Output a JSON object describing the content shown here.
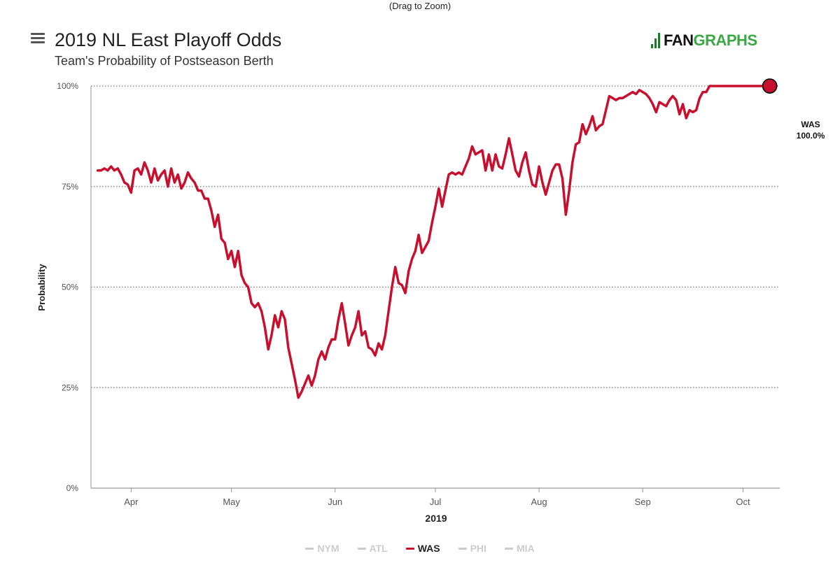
{
  "zoom_hint": "(Drag to Zoom)",
  "logo": {
    "part1": "FAN",
    "part2": "GRAPHS"
  },
  "colors": {
    "series": "#c8102e",
    "grid": "#777777",
    "axis": "#999999"
  },
  "end_label": {
    "team": "WAS",
    "value": "100.0%"
  },
  "legend": [
    {
      "label": "NYM",
      "active": false
    },
    {
      "label": "ATL",
      "active": false
    },
    {
      "label": "WAS",
      "active": true
    },
    {
      "label": "PHI",
      "active": false
    },
    {
      "label": "MIA",
      "active": false
    }
  ],
  "chart_data": {
    "type": "line",
    "title": "2019 NL East Playoff Odds",
    "subtitle": "Team's Probability of Postseason Berth",
    "xlabel": "2019",
    "ylabel": "Probability",
    "x_range": [
      "2019-03-20",
      "2019-10-12"
    ],
    "ylim": [
      0,
      100
    ],
    "y_ticks": [
      {
        "value": 0,
        "label": "0%"
      },
      {
        "value": 25,
        "label": "25%"
      },
      {
        "value": 50,
        "label": "50%"
      },
      {
        "value": 75,
        "label": "75%"
      },
      {
        "value": 100,
        "label": "100%"
      }
    ],
    "x_ticks": [
      {
        "date": "2019-04-01",
        "label": "Apr"
      },
      {
        "date": "2019-05-01",
        "label": "May"
      },
      {
        "date": "2019-06-01",
        "label": "Jun"
      },
      {
        "date": "2019-07-01",
        "label": "Jul"
      },
      {
        "date": "2019-08-01",
        "label": "Aug"
      },
      {
        "date": "2019-09-01",
        "label": "Sep"
      },
      {
        "date": "2019-10-01",
        "label": "Oct"
      }
    ],
    "grid": "horizontal dotted",
    "legend_position": "bottom",
    "series": [
      {
        "name": "WAS",
        "points": [
          [
            "2019-03-22",
            79
          ],
          [
            "2019-03-23",
            79
          ],
          [
            "2019-03-24",
            79.5
          ],
          [
            "2019-03-25",
            79
          ],
          [
            "2019-03-26",
            80
          ],
          [
            "2019-03-27",
            79
          ],
          [
            "2019-03-28",
            79.5
          ],
          [
            "2019-03-29",
            78
          ],
          [
            "2019-03-30",
            76
          ],
          [
            "2019-03-31",
            75.5
          ],
          [
            "2019-04-01",
            73.5
          ],
          [
            "2019-04-02",
            79
          ],
          [
            "2019-04-03",
            79.5
          ],
          [
            "2019-04-04",
            78
          ],
          [
            "2019-04-05",
            81
          ],
          [
            "2019-04-06",
            79
          ],
          [
            "2019-04-07",
            76
          ],
          [
            "2019-04-08",
            79.5
          ],
          [
            "2019-04-09",
            76.5
          ],
          [
            "2019-04-10",
            78
          ],
          [
            "2019-04-11",
            79
          ],
          [
            "2019-04-12",
            75
          ],
          [
            "2019-04-13",
            79.5
          ],
          [
            "2019-04-14",
            76
          ],
          [
            "2019-04-15",
            78
          ],
          [
            "2019-04-16",
            74.5
          ],
          [
            "2019-04-17",
            76
          ],
          [
            "2019-04-18",
            78.5
          ],
          [
            "2019-04-19",
            77
          ],
          [
            "2019-04-20",
            76
          ],
          [
            "2019-04-21",
            74
          ],
          [
            "2019-04-22",
            74
          ],
          [
            "2019-04-23",
            72
          ],
          [
            "2019-04-24",
            72
          ],
          [
            "2019-04-25",
            69
          ],
          [
            "2019-04-26",
            65
          ],
          [
            "2019-04-27",
            68
          ],
          [
            "2019-04-28",
            62
          ],
          [
            "2019-04-29",
            61
          ],
          [
            "2019-04-30",
            57
          ],
          [
            "2019-05-01",
            59
          ],
          [
            "2019-05-02",
            55
          ],
          [
            "2019-05-03",
            59
          ],
          [
            "2019-05-04",
            53
          ],
          [
            "2019-05-05",
            51
          ],
          [
            "2019-05-06",
            50
          ],
          [
            "2019-05-07",
            46
          ],
          [
            "2019-05-08",
            45
          ],
          [
            "2019-05-09",
            46
          ],
          [
            "2019-05-10",
            44
          ],
          [
            "2019-05-11",
            40
          ],
          [
            "2019-05-12",
            34.5
          ],
          [
            "2019-05-13",
            38
          ],
          [
            "2019-05-14",
            43
          ],
          [
            "2019-05-15",
            40
          ],
          [
            "2019-05-16",
            44
          ],
          [
            "2019-05-17",
            42
          ],
          [
            "2019-05-18",
            35
          ],
          [
            "2019-05-19",
            31
          ],
          [
            "2019-05-20",
            27
          ],
          [
            "2019-05-21",
            22.5
          ],
          [
            "2019-05-22",
            24
          ],
          [
            "2019-05-23",
            26
          ],
          [
            "2019-05-24",
            28
          ],
          [
            "2019-05-25",
            25.5
          ],
          [
            "2019-05-26",
            28
          ],
          [
            "2019-05-27",
            32
          ],
          [
            "2019-05-28",
            34
          ],
          [
            "2019-05-29",
            32
          ],
          [
            "2019-05-30",
            35
          ],
          [
            "2019-05-31",
            37
          ],
          [
            "2019-06-01",
            37
          ],
          [
            "2019-06-02",
            42
          ],
          [
            "2019-06-03",
            46
          ],
          [
            "2019-06-04",
            41
          ],
          [
            "2019-06-05",
            35.5
          ],
          [
            "2019-06-06",
            38
          ],
          [
            "2019-06-07",
            40
          ],
          [
            "2019-06-08",
            44
          ],
          [
            "2019-06-09",
            38
          ],
          [
            "2019-06-10",
            39
          ],
          [
            "2019-06-11",
            35
          ],
          [
            "2019-06-12",
            34.5
          ],
          [
            "2019-06-13",
            33
          ],
          [
            "2019-06-14",
            36
          ],
          [
            "2019-06-15",
            34.5
          ],
          [
            "2019-06-16",
            38
          ],
          [
            "2019-06-17",
            44
          ],
          [
            "2019-06-18",
            50
          ],
          [
            "2019-06-19",
            55
          ],
          [
            "2019-06-20",
            51
          ],
          [
            "2019-06-21",
            50.5
          ],
          [
            "2019-06-22",
            48.5
          ],
          [
            "2019-06-23",
            54
          ],
          [
            "2019-06-24",
            57
          ],
          [
            "2019-06-25",
            59
          ],
          [
            "2019-06-26",
            63
          ],
          [
            "2019-06-27",
            58.5
          ],
          [
            "2019-06-28",
            60
          ],
          [
            "2019-06-29",
            61.5
          ],
          [
            "2019-06-30",
            66
          ],
          [
            "2019-07-01",
            70
          ],
          [
            "2019-07-02",
            74.5
          ],
          [
            "2019-07-03",
            70
          ],
          [
            "2019-07-04",
            74
          ],
          [
            "2019-07-05",
            78
          ],
          [
            "2019-07-06",
            78.5
          ],
          [
            "2019-07-07",
            78
          ],
          [
            "2019-07-08",
            78.5
          ],
          [
            "2019-07-09",
            78
          ],
          [
            "2019-07-10",
            80
          ],
          [
            "2019-07-11",
            82
          ],
          [
            "2019-07-12",
            85
          ],
          [
            "2019-07-13",
            83
          ],
          [
            "2019-07-14",
            83.5
          ],
          [
            "2019-07-15",
            84
          ],
          [
            "2019-07-16",
            79
          ],
          [
            "2019-07-17",
            83
          ],
          [
            "2019-07-18",
            79
          ],
          [
            "2019-07-19",
            83
          ],
          [
            "2019-07-20",
            80
          ],
          [
            "2019-07-21",
            79.5
          ],
          [
            "2019-07-22",
            83
          ],
          [
            "2019-07-23",
            87
          ],
          [
            "2019-07-24",
            83
          ],
          [
            "2019-07-25",
            79
          ],
          [
            "2019-07-26",
            77.5
          ],
          [
            "2019-07-27",
            81
          ],
          [
            "2019-07-28",
            83.5
          ],
          [
            "2019-07-29",
            79
          ],
          [
            "2019-07-30",
            75.5
          ],
          [
            "2019-07-31",
            75
          ],
          [
            "2019-08-01",
            80
          ],
          [
            "2019-08-02",
            76
          ],
          [
            "2019-08-03",
            73
          ],
          [
            "2019-08-04",
            76
          ],
          [
            "2019-08-05",
            79
          ],
          [
            "2019-08-06",
            80.5
          ],
          [
            "2019-08-07",
            80.5
          ],
          [
            "2019-08-08",
            77
          ],
          [
            "2019-08-09",
            68
          ],
          [
            "2019-08-10",
            74
          ],
          [
            "2019-08-11",
            81
          ],
          [
            "2019-08-12",
            85.5
          ],
          [
            "2019-08-13",
            86
          ],
          [
            "2019-08-14",
            90.5
          ],
          [
            "2019-08-15",
            88
          ],
          [
            "2019-08-16",
            90
          ],
          [
            "2019-08-17",
            92.5
          ],
          [
            "2019-08-18",
            89
          ],
          [
            "2019-08-19",
            90
          ],
          [
            "2019-08-20",
            90.5
          ],
          [
            "2019-08-21",
            94
          ],
          [
            "2019-08-22",
            97.5
          ],
          [
            "2019-08-23",
            97
          ],
          [
            "2019-08-24",
            96.5
          ],
          [
            "2019-08-25",
            97
          ],
          [
            "2019-08-26",
            97
          ],
          [
            "2019-08-27",
            97.5
          ],
          [
            "2019-08-28",
            98
          ],
          [
            "2019-08-29",
            98.5
          ],
          [
            "2019-08-30",
            98
          ],
          [
            "2019-08-31",
            99
          ],
          [
            "2019-09-01",
            98.5
          ],
          [
            "2019-09-02",
            98
          ],
          [
            "2019-09-03",
            97
          ],
          [
            "2019-09-04",
            95.5
          ],
          [
            "2019-09-05",
            93.5
          ],
          [
            "2019-09-06",
            96
          ],
          [
            "2019-09-07",
            95.5
          ],
          [
            "2019-09-08",
            95
          ],
          [
            "2019-09-09",
            96.5
          ],
          [
            "2019-09-10",
            97.5
          ],
          [
            "2019-09-11",
            96.5
          ],
          [
            "2019-09-12",
            93
          ],
          [
            "2019-09-13",
            95.5
          ],
          [
            "2019-09-14",
            92
          ],
          [
            "2019-09-15",
            94
          ],
          [
            "2019-09-16",
            93.5
          ],
          [
            "2019-09-17",
            94
          ],
          [
            "2019-09-18",
            97
          ],
          [
            "2019-09-19",
            98.5
          ],
          [
            "2019-09-20",
            98.5
          ],
          [
            "2019-09-21",
            100
          ],
          [
            "2019-09-22",
            100
          ],
          [
            "2019-09-23",
            100
          ],
          [
            "2019-09-24",
            100
          ],
          [
            "2019-09-25",
            100
          ],
          [
            "2019-09-26",
            100
          ],
          [
            "2019-09-27",
            100
          ],
          [
            "2019-09-28",
            100
          ],
          [
            "2019-09-29",
            100
          ],
          [
            "2019-09-30",
            100
          ],
          [
            "2019-10-01",
            100
          ],
          [
            "2019-10-02",
            100
          ],
          [
            "2019-10-03",
            100
          ],
          [
            "2019-10-04",
            100
          ],
          [
            "2019-10-05",
            100
          ],
          [
            "2019-10-06",
            100
          ],
          [
            "2019-10-07",
            100
          ],
          [
            "2019-10-08",
            100
          ],
          [
            "2019-10-09",
            100
          ]
        ]
      }
    ]
  }
}
